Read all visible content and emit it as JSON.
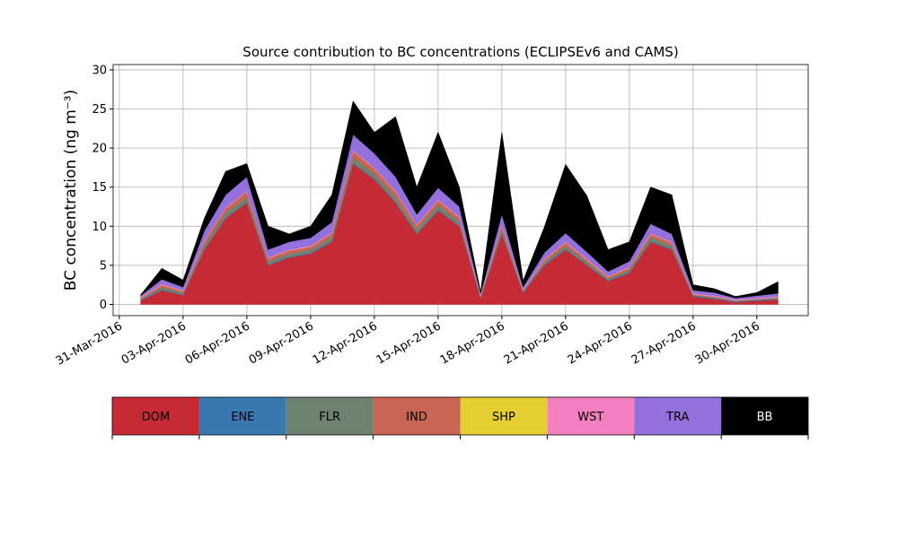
{
  "chart_data": {
    "type": "stacked_area",
    "title": "Source contribution to BC concentrations (ECLIPSEv6 and CAMS)",
    "ylabel": "BC concentration (ng m⁻³)",
    "x": [
      "2016-04-01",
      "2016-04-02",
      "2016-04-03",
      "2016-04-04",
      "2016-04-05",
      "2016-04-06",
      "2016-04-07",
      "2016-04-08",
      "2016-04-09",
      "2016-04-10",
      "2016-04-11",
      "2016-04-12",
      "2016-04-13",
      "2016-04-14",
      "2016-04-15",
      "2016-04-16",
      "2016-04-17",
      "2016-04-18",
      "2016-04-19",
      "2016-04-20",
      "2016-04-21",
      "2016-04-22",
      "2016-04-23",
      "2016-04-24",
      "2016-04-25",
      "2016-04-26",
      "2016-04-27",
      "2016-04-28",
      "2016-04-29",
      "2016-04-30",
      "2016-05-01"
    ],
    "series": [
      {
        "name": "DOM",
        "color": "#c52a35",
        "values": [
          0.5,
          1.8,
          1.2,
          7,
          11,
          13,
          5,
          6,
          6.5,
          8,
          18,
          16,
          13,
          9,
          12,
          10,
          0.8,
          9,
          1.5,
          5,
          7,
          5,
          3,
          4,
          8,
          7,
          1,
          0.7,
          0.3,
          0.5,
          0.6
        ]
      },
      {
        "name": "ENE",
        "color": "#3a78b1",
        "values": [
          0.1,
          0.1,
          0.1,
          0.1,
          0.1,
          0.1,
          0.1,
          0.1,
          0.1,
          0.1,
          0.1,
          0.1,
          0.1,
          0.1,
          0.1,
          0.1,
          0.1,
          0.1,
          0.1,
          0.1,
          0.1,
          0.1,
          0.1,
          0.1,
          0.1,
          0.1,
          0.1,
          0.1,
          0.1,
          0.1,
          0.1
        ]
      },
      {
        "name": "FLR",
        "color": "#6e8270",
        "values": [
          0.1,
          0.3,
          0.2,
          0.5,
          0.6,
          0.6,
          0.4,
          0.4,
          0.4,
          0.5,
          0.7,
          0.6,
          0.6,
          0.5,
          0.6,
          0.5,
          0.1,
          0.5,
          0.1,
          0.3,
          0.4,
          0.3,
          0.2,
          0.3,
          0.5,
          0.4,
          0.1,
          0.1,
          0.05,
          0.05,
          0.1
        ]
      },
      {
        "name": "IND",
        "color": "#c86555",
        "values": [
          0.1,
          0.3,
          0.2,
          0.5,
          0.6,
          0.7,
          0.4,
          0.4,
          0.4,
          0.5,
          0.8,
          0.7,
          0.7,
          0.5,
          0.6,
          0.5,
          0.1,
          0.5,
          0.1,
          0.3,
          0.4,
          0.3,
          0.2,
          0.3,
          0.4,
          0.4,
          0.1,
          0.1,
          0.05,
          0.05,
          0.1
        ]
      },
      {
        "name": "SHP",
        "color": "#e6cf30",
        "values": [
          0.02,
          0.02,
          0.02,
          0.02,
          0.02,
          0.02,
          0.02,
          0.02,
          0.02,
          0.02,
          0.02,
          0.02,
          0.02,
          0.02,
          0.02,
          0.02,
          0.02,
          0.02,
          0.02,
          0.02,
          0.02,
          0.02,
          0.02,
          0.02,
          0.02,
          0.02,
          0.02,
          0.02,
          0.02,
          0.02,
          0.02
        ]
      },
      {
        "name": "WST",
        "color": "#f27fbf",
        "values": [
          0.1,
          0.1,
          0.1,
          0.1,
          0.1,
          0.1,
          0.1,
          0.1,
          0.1,
          0.1,
          0.1,
          0.1,
          0.1,
          0.1,
          0.1,
          0.1,
          0.1,
          0.1,
          0.1,
          0.1,
          0.1,
          0.1,
          0.1,
          0.1,
          0.1,
          0.1,
          0.1,
          0.1,
          0.1,
          0.1,
          0.1
        ]
      },
      {
        "name": "TRA",
        "color": "#9370db",
        "values": [
          0.2,
          0.6,
          0.4,
          1.2,
          1.6,
          1.8,
          1,
          1,
          1,
          1.3,
          2,
          1.8,
          1.8,
          1.3,
          1.5,
          1.3,
          0.2,
          1.3,
          0.3,
          0.8,
          1.1,
          0.9,
          0.6,
          0.7,
          1.2,
          1,
          0.4,
          0.4,
          0.2,
          0.3,
          0.4
        ]
      },
      {
        "name": "BB",
        "color": "#000000",
        "text_color": "#ffffff",
        "values": [
          0.1,
          1.4,
          0.9,
          1.6,
          3,
          1.7,
          3,
          1,
          1.5,
          3.5,
          4.3,
          2.7,
          7.7,
          3.5,
          7.1,
          2.5,
          0.2,
          10.5,
          0.8,
          3.3,
          8.8,
          7.2,
          2.8,
          2.5,
          4.7,
          5,
          0.7,
          0.5,
          0.2,
          0.4,
          1.5
        ]
      }
    ],
    "xlim": [
      "2016-03-30T17:00",
      "2016-05-02T10:00"
    ],
    "xticks": [
      {
        "value": "2016-03-31",
        "label": "31-Mar-2016"
      },
      {
        "value": "2016-04-03",
        "label": "03-Apr-2016"
      },
      {
        "value": "2016-04-06",
        "label": "06-Apr-2016"
      },
      {
        "value": "2016-04-09",
        "label": "09-Apr-2016"
      },
      {
        "value": "2016-04-12",
        "label": "12-Apr-2016"
      },
      {
        "value": "2016-04-15",
        "label": "15-Apr-2016"
      },
      {
        "value": "2016-04-18",
        "label": "18-Apr-2016"
      },
      {
        "value": "2016-04-21",
        "label": "21-Apr-2016"
      },
      {
        "value": "2016-04-24",
        "label": "24-Apr-2016"
      },
      {
        "value": "2016-04-27",
        "label": "27-Apr-2016"
      },
      {
        "value": "2016-04-30",
        "label": "30-Apr-2016"
      }
    ],
    "ylim": [
      -1.43,
      30.68
    ],
    "yticks": [
      0,
      5,
      10,
      15,
      20,
      25,
      30
    ],
    "grid": true
  }
}
